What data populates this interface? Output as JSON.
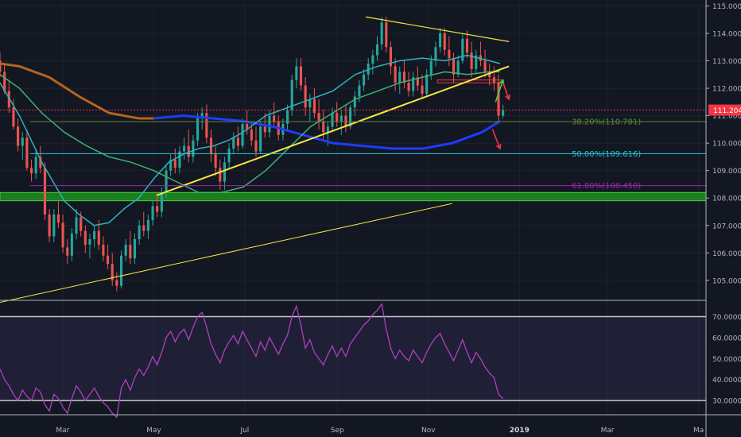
{
  "chart_data": {
    "type": "candlestick",
    "colors": {
      "background": "#131722",
      "up": "#26a69a",
      "down": "#ef5350",
      "grid": "#1e222d",
      "ma_long": "#b5651d",
      "ma_mid": "#3cb371",
      "ma_short": "#2bb5c0",
      "ma_blue": "#1e3cff",
      "trendline": "#f5e642",
      "rsi": "#b040c0",
      "green_zone": "#1f8f1f",
      "current_price_tag": "#f23645"
    },
    "price_axis": {
      "ylim": [
        104.3,
        115.1
      ],
      "ticks": [
        "115.000",
        "114.000",
        "113.000",
        "112.000",
        "111.000",
        "110.000",
        "109.000",
        "108.000",
        "107.000",
        "106.000",
        "105.000"
      ]
    },
    "current_price": {
      "value": 111.204,
      "label": "111.204"
    },
    "x_axis": {
      "labels": [
        {
          "text": "Mar",
          "day": 59,
          "bold": false
        },
        {
          "text": "May",
          "day": 120,
          "bold": false
        },
        {
          "text": "Jul",
          "day": 181,
          "bold": false
        },
        {
          "text": "Sep",
          "day": 243,
          "bold": false
        },
        {
          "text": "Nov",
          "day": 304,
          "bold": false
        },
        {
          "text": "2019",
          "day": 365,
          "bold": true
        },
        {
          "text": "Mar",
          "day": 424,
          "bold": false
        },
        {
          "text": "Ma",
          "day": 485,
          "bold": false
        }
      ],
      "range_days": [
        17,
        490
      ]
    },
    "candles_ohlc": [
      [
        113.0,
        113.3,
        112.4,
        112.6
      ],
      [
        112.6,
        112.9,
        111.8,
        111.9
      ],
      [
        111.9,
        112.3,
        111.1,
        111.3
      ],
      [
        111.3,
        111.6,
        110.5,
        110.6
      ],
      [
        110.6,
        110.9,
        109.7,
        109.9
      ],
      [
        109.9,
        110.4,
        109.4,
        110.2
      ],
      [
        110.2,
        110.5,
        109.0,
        109.1
      ],
      [
        109.1,
        109.4,
        108.6,
        108.9
      ],
      [
        108.9,
        109.8,
        108.7,
        109.5
      ],
      [
        109.5,
        109.9,
        108.9,
        109.1
      ],
      [
        109.1,
        109.3,
        107.2,
        107.4
      ],
      [
        107.4,
        107.6,
        106.4,
        106.6
      ],
      [
        106.6,
        107.6,
        106.4,
        107.4
      ],
      [
        107.4,
        107.9,
        106.9,
        107.1
      ],
      [
        107.1,
        107.4,
        106.0,
        106.2
      ],
      [
        106.2,
        106.5,
        105.6,
        105.9
      ],
      [
        105.9,
        106.9,
        105.7,
        106.7
      ],
      [
        106.7,
        107.6,
        106.5,
        107.3
      ],
      [
        107.3,
        107.5,
        106.6,
        106.8
      ],
      [
        106.8,
        107.0,
        106.0,
        106.3
      ],
      [
        106.3,
        106.7,
        105.8,
        106.5
      ],
      [
        106.5,
        107.0,
        106.2,
        106.8
      ],
      [
        106.8,
        107.2,
        106.1,
        106.3
      ],
      [
        106.3,
        106.6,
        105.7,
        105.9
      ],
      [
        105.9,
        106.3,
        105.4,
        105.6
      ],
      [
        105.6,
        106.0,
        104.8,
        105.0
      ],
      [
        105.0,
        105.3,
        104.6,
        104.8
      ],
      [
        104.8,
        106.1,
        104.7,
        105.9
      ],
      [
        105.9,
        106.5,
        105.7,
        106.3
      ],
      [
        106.3,
        106.8,
        105.6,
        105.8
      ],
      [
        105.8,
        106.7,
        105.6,
        106.5
      ],
      [
        106.5,
        107.2,
        106.3,
        107.0
      ],
      [
        107.0,
        107.5,
        106.6,
        106.8
      ],
      [
        106.8,
        107.4,
        106.5,
        107.2
      ],
      [
        107.2,
        107.9,
        107.0,
        107.7
      ],
      [
        107.7,
        108.2,
        107.3,
        107.5
      ],
      [
        107.5,
        108.4,
        107.3,
        108.2
      ],
      [
        108.2,
        109.2,
        108.0,
        109.0
      ],
      [
        109.0,
        109.6,
        108.8,
        109.4
      ],
      [
        109.4,
        109.8,
        108.9,
        109.1
      ],
      [
        109.1,
        109.9,
        108.9,
        109.7
      ],
      [
        109.7,
        110.2,
        109.4,
        109.9
      ],
      [
        109.9,
        110.5,
        109.3,
        109.5
      ],
      [
        109.5,
        110.3,
        109.3,
        110.1
      ],
      [
        110.1,
        111.1,
        109.9,
        110.9
      ],
      [
        110.9,
        111.3,
        110.5,
        111.1
      ],
      [
        111.1,
        111.4,
        110.0,
        110.2
      ],
      [
        110.2,
        110.5,
        109.3,
        109.6
      ],
      [
        109.6,
        109.9,
        108.8,
        109.1
      ],
      [
        109.1,
        109.4,
        108.3,
        108.6
      ],
      [
        108.6,
        109.5,
        108.3,
        109.3
      ],
      [
        109.3,
        110.0,
        109.1,
        109.8
      ],
      [
        109.8,
        110.4,
        109.6,
        110.2
      ],
      [
        110.2,
        110.6,
        109.7,
        109.9
      ],
      [
        109.9,
        110.9,
        109.8,
        110.7
      ],
      [
        110.7,
        111.2,
        110.3,
        110.5
      ],
      [
        110.5,
        110.8,
        109.9,
        110.1
      ],
      [
        110.1,
        110.6,
        109.5,
        109.7
      ],
      [
        109.7,
        110.8,
        109.6,
        110.6
      ],
      [
        110.6,
        111.1,
        110.2,
        110.4
      ],
      [
        110.4,
        111.2,
        110.2,
        111.0
      ],
      [
        111.0,
        111.5,
        110.6,
        110.8
      ],
      [
        110.8,
        111.0,
        110.1,
        110.3
      ],
      [
        110.3,
        110.9,
        110.1,
        110.7
      ],
      [
        110.7,
        111.4,
        110.5,
        111.2
      ],
      [
        111.2,
        112.5,
        111.0,
        112.3
      ],
      [
        112.3,
        113.1,
        112.0,
        112.8
      ],
      [
        112.8,
        113.1,
        111.9,
        112.1
      ],
      [
        112.1,
        112.4,
        111.0,
        111.3
      ],
      [
        111.3,
        111.8,
        110.8,
        111.6
      ],
      [
        111.6,
        112.0,
        110.9,
        111.1
      ],
      [
        111.1,
        111.6,
        110.5,
        110.8
      ],
      [
        110.8,
        111.2,
        110.1,
        110.4
      ],
      [
        110.4,
        110.8,
        109.9,
        110.6
      ],
      [
        110.6,
        111.3,
        110.4,
        111.1
      ],
      [
        111.1,
        111.5,
        110.6,
        110.8
      ],
      [
        110.8,
        111.2,
        110.3,
        111.0
      ],
      [
        111.0,
        111.4,
        110.4,
        110.6
      ],
      [
        110.6,
        111.4,
        110.5,
        111.3
      ],
      [
        111.3,
        111.9,
        111.0,
        111.7
      ],
      [
        111.7,
        112.3,
        111.5,
        112.1
      ],
      [
        112.1,
        112.7,
        111.9,
        112.5
      ],
      [
        112.5,
        113.1,
        112.3,
        112.9
      ],
      [
        112.9,
        113.4,
        112.5,
        113.2
      ],
      [
        113.2,
        113.9,
        113.0,
        113.6
      ],
      [
        113.6,
        114.6,
        113.4,
        114.4
      ],
      [
        114.4,
        114.6,
        113.3,
        113.5
      ],
      [
        113.5,
        113.7,
        112.5,
        112.8
      ],
      [
        112.8,
        113.1,
        111.9,
        112.2
      ],
      [
        112.2,
        112.8,
        111.8,
        112.6
      ],
      [
        112.6,
        113.0,
        112.0,
        112.2
      ],
      [
        112.2,
        112.6,
        111.7,
        111.9
      ],
      [
        111.9,
        112.6,
        111.7,
        112.4
      ],
      [
        112.4,
        112.8,
        111.9,
        112.1
      ],
      [
        112.1,
        112.5,
        111.6,
        111.8
      ],
      [
        111.8,
        112.7,
        111.7,
        112.5
      ],
      [
        112.5,
        113.2,
        112.3,
        113.0
      ],
      [
        113.0,
        113.7,
        112.8,
        113.5
      ],
      [
        113.5,
        114.2,
        113.3,
        114.0
      ],
      [
        114.0,
        114.2,
        113.2,
        113.4
      ],
      [
        113.4,
        113.9,
        112.8,
        113.1
      ],
      [
        113.1,
        113.3,
        112.2,
        112.5
      ],
      [
        112.5,
        113.2,
        112.4,
        113.0
      ],
      [
        113.0,
        114.0,
        112.9,
        113.8
      ],
      [
        113.8,
        114.1,
        113.1,
        113.3
      ],
      [
        113.3,
        113.7,
        112.4,
        112.7
      ],
      [
        112.7,
        113.4,
        112.5,
        113.2
      ],
      [
        113.2,
        113.7,
        112.8,
        113.0
      ],
      [
        113.0,
        113.4,
        112.4,
        112.6
      ],
      [
        112.6,
        112.9,
        112.1,
        112.4
      ],
      [
        112.4,
        112.8,
        111.9,
        112.2
      ],
      [
        112.2,
        112.5,
        110.8,
        111.0
      ],
      [
        111.0,
        111.4,
        110.9,
        111.2
      ]
    ],
    "moving_averages": [
      {
        "key": "ma_long",
        "width": 3,
        "points": [
          [
            17,
            112.9
          ],
          [
            30,
            112.8
          ],
          [
            50,
            112.4
          ],
          [
            70,
            111.7
          ],
          [
            90,
            111.1
          ],
          [
            110,
            110.9
          ],
          [
            120,
            110.9
          ]
        ]
      },
      {
        "key": "ma_blue",
        "width": 3,
        "points": [
          [
            120,
            110.9
          ],
          [
            140,
            111.0
          ],
          [
            160,
            110.9
          ],
          [
            180,
            110.8
          ],
          [
            200,
            110.6
          ],
          [
            220,
            110.3
          ],
          [
            240,
            110.0
          ],
          [
            260,
            109.9
          ],
          [
            280,
            109.8
          ],
          [
            300,
            109.8
          ],
          [
            320,
            110.0
          ],
          [
            340,
            110.4
          ],
          [
            352,
            110.8
          ]
        ]
      },
      {
        "key": "ma_mid",
        "width": 1.5,
        "points": [
          [
            17,
            112.5
          ],
          [
            30,
            112.0
          ],
          [
            45,
            111.1
          ],
          [
            60,
            110.4
          ],
          [
            75,
            109.9
          ],
          [
            90,
            109.5
          ],
          [
            105,
            109.3
          ],
          [
            120,
            109.0
          ],
          [
            135,
            108.6
          ],
          [
            150,
            108.2
          ],
          [
            165,
            108.2
          ],
          [
            180,
            108.4
          ],
          [
            195,
            109.0
          ],
          [
            210,
            109.8
          ],
          [
            225,
            110.6
          ],
          [
            240,
            111.1
          ],
          [
            255,
            111.6
          ],
          [
            270,
            111.9
          ],
          [
            285,
            112.2
          ],
          [
            300,
            112.4
          ],
          [
            315,
            112.6
          ],
          [
            330,
            112.5
          ],
          [
            345,
            112.6
          ],
          [
            352,
            112.6
          ]
        ]
      },
      {
        "key": "ma_short",
        "width": 1.5,
        "points": [
          [
            17,
            112.2
          ],
          [
            30,
            111.0
          ],
          [
            45,
            109.3
          ],
          [
            60,
            107.9
          ],
          [
            70,
            107.4
          ],
          [
            80,
            107.0
          ],
          [
            90,
            107.1
          ],
          [
            100,
            107.6
          ],
          [
            110,
            108.0
          ],
          [
            120,
            108.7
          ],
          [
            130,
            109.3
          ],
          [
            140,
            109.6
          ],
          [
            150,
            109.8
          ],
          [
            160,
            109.9
          ],
          [
            170,
            110.1
          ],
          [
            180,
            110.4
          ],
          [
            195,
            111.0
          ],
          [
            210,
            111.3
          ],
          [
            225,
            111.6
          ],
          [
            240,
            111.9
          ],
          [
            255,
            112.5
          ],
          [
            270,
            112.8
          ],
          [
            285,
            113.0
          ],
          [
            300,
            113.1
          ],
          [
            315,
            113.0
          ],
          [
            330,
            113.2
          ],
          [
            345,
            113.0
          ],
          [
            352,
            112.9
          ]
        ]
      }
    ],
    "trendlines": [
      {
        "key": "trendline",
        "width": 1,
        "points": [
          [
            17,
            104.2
          ],
          [
            320,
            107.8
          ]
        ]
      },
      {
        "key": "trendline",
        "width": 2,
        "points": [
          [
            122,
            108.1
          ],
          [
            358,
            112.8
          ]
        ]
      },
      {
        "key": "trendline",
        "width": 1.2,
        "points": [
          [
            262,
            114.6
          ],
          [
            358,
            113.7
          ]
        ]
      }
    ],
    "fibonacci": [
      {
        "label": "38.20%(110.781)",
        "value": 110.781,
        "color": "#5a8a3a",
        "from_day": 37
      },
      {
        "label": "50.00%(109.616)",
        "value": 109.616,
        "color": "#26c6da",
        "from_day": 37
      },
      {
        "label": "61.80%(108.450)",
        "value": 108.45,
        "color": "#9c27b0",
        "from_day": 37
      }
    ],
    "support_zone": {
      "low": 107.9,
      "high": 108.2
    },
    "resistance_box": {
      "low": 112.2,
      "high": 112.3,
      "from_day": 310,
      "to_day": 354
    },
    "arrows": [
      {
        "color": "#3cd43c",
        "points": [
          [
            349,
            111.5
          ],
          [
            354,
            112.3
          ]
        ]
      },
      {
        "color": "#f23645",
        "points": [
          [
            354,
            112.2
          ],
          [
            358,
            111.6
          ]
        ]
      },
      {
        "color": "#f23645",
        "points": [
          [
            347,
            110.5
          ],
          [
            352,
            109.8
          ]
        ]
      }
    ],
    "rsi": {
      "ylim": [
        24,
        77
      ],
      "ticks": [
        "70.0000",
        "60.0000",
        "50.0000",
        "40.0000",
        "30.0000"
      ],
      "levels": [
        70,
        30
      ],
      "values": [
        45,
        40,
        37,
        33,
        30,
        35,
        32,
        30,
        36,
        34,
        28,
        25,
        33,
        31,
        27,
        24,
        31,
        37,
        34,
        30,
        33,
        36,
        32,
        29,
        27,
        24,
        22,
        36,
        40,
        35,
        41,
        45,
        42,
        46,
        51,
        47,
        53,
        60,
        63,
        58,
        62,
        64,
        59,
        65,
        70,
        72,
        65,
        57,
        52,
        48,
        54,
        58,
        61,
        57,
        63,
        59,
        55,
        51,
        58,
        54,
        60,
        56,
        52,
        57,
        61,
        70,
        75,
        66,
        55,
        59,
        53,
        50,
        47,
        52,
        56,
        51,
        55,
        51,
        57,
        60,
        63,
        66,
        68,
        71,
        73,
        76,
        64,
        55,
        50,
        54,
        51,
        49,
        54,
        51,
        48,
        53,
        57,
        60,
        62,
        57,
        53,
        49,
        54,
        59,
        53,
        48,
        53,
        50,
        46,
        43,
        41,
        33,
        31
      ]
    }
  }
}
